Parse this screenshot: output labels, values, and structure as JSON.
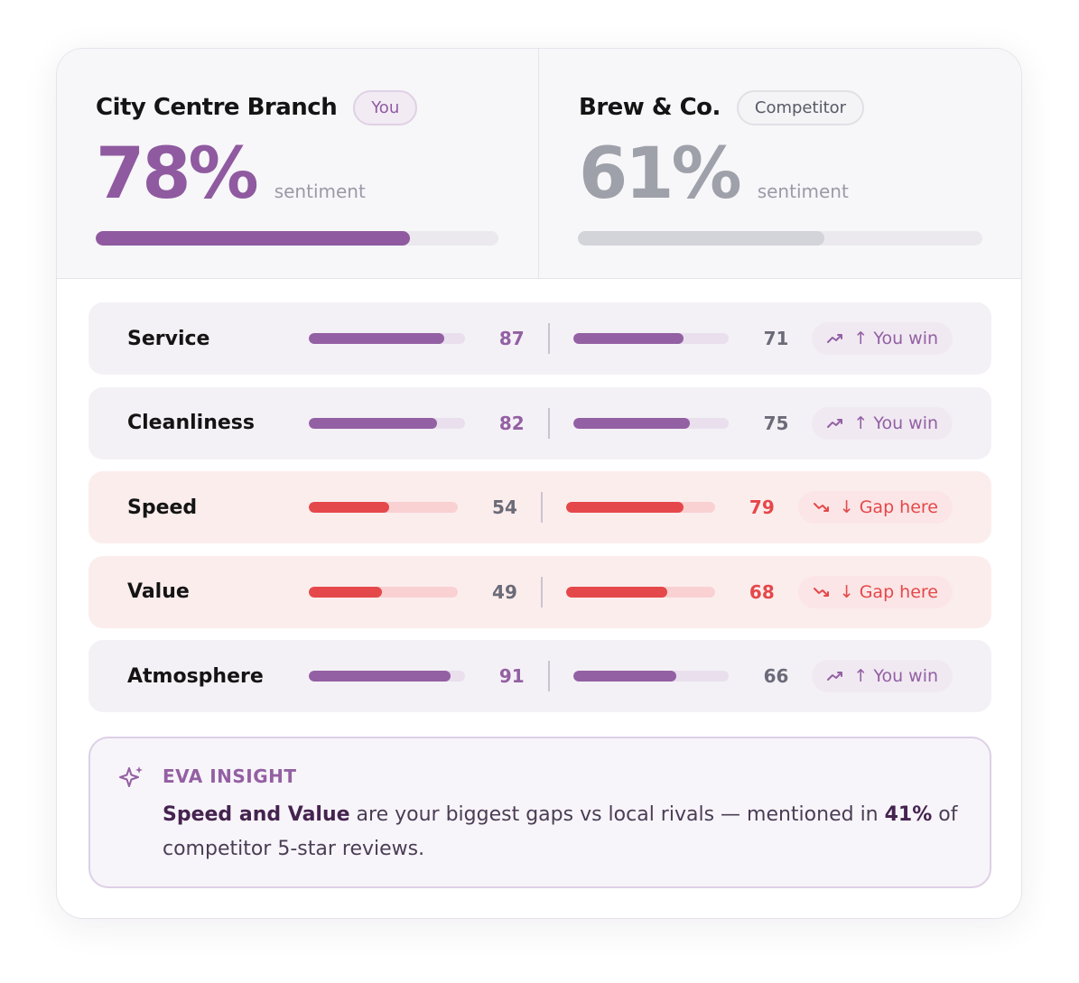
{
  "you": {
    "name": "City Centre Branch",
    "badge": "You",
    "value": 78,
    "value_label": "78%",
    "caption": "sentiment",
    "color": "#8f5aa0"
  },
  "competitor": {
    "name": "Brew & Co.",
    "badge": "Competitor",
    "value": 61,
    "value_label": "61%",
    "caption": "sentiment",
    "color": "#9ea1a9"
  },
  "rows": [
    {
      "label": "Service",
      "you": 87,
      "competitor": 71,
      "badge": "↑ You win",
      "color": "#9360a3"
    },
    {
      "label": "Cleanliness",
      "you": 82,
      "competitor": 75,
      "badge": "↑ You win",
      "color": "#9360a3"
    },
    {
      "label": "Speed",
      "you": 54,
      "competitor": 79,
      "badge": "↓ Gap here",
      "color": "#e5484a"
    },
    {
      "label": "Value",
      "you": 49,
      "competitor": 68,
      "badge": "↓ Gap here",
      "color": "#e5484a"
    },
    {
      "label": "Atmosphere",
      "you": 91,
      "competitor": 66,
      "badge": "↑ You win",
      "color": "#9360a3"
    }
  ],
  "insight": {
    "title": "EVA INSIGHT",
    "parts": [
      {
        "text": "Speed and Value",
        "bold": true
      },
      {
        "text": " are your biggest gaps vs local rivals — mentioned in ",
        "bold": false
      },
      {
        "text": "41%",
        "bold": true
      },
      {
        "text": " of competitor 5-star reviews.",
        "bold": false
      }
    ]
  }
}
